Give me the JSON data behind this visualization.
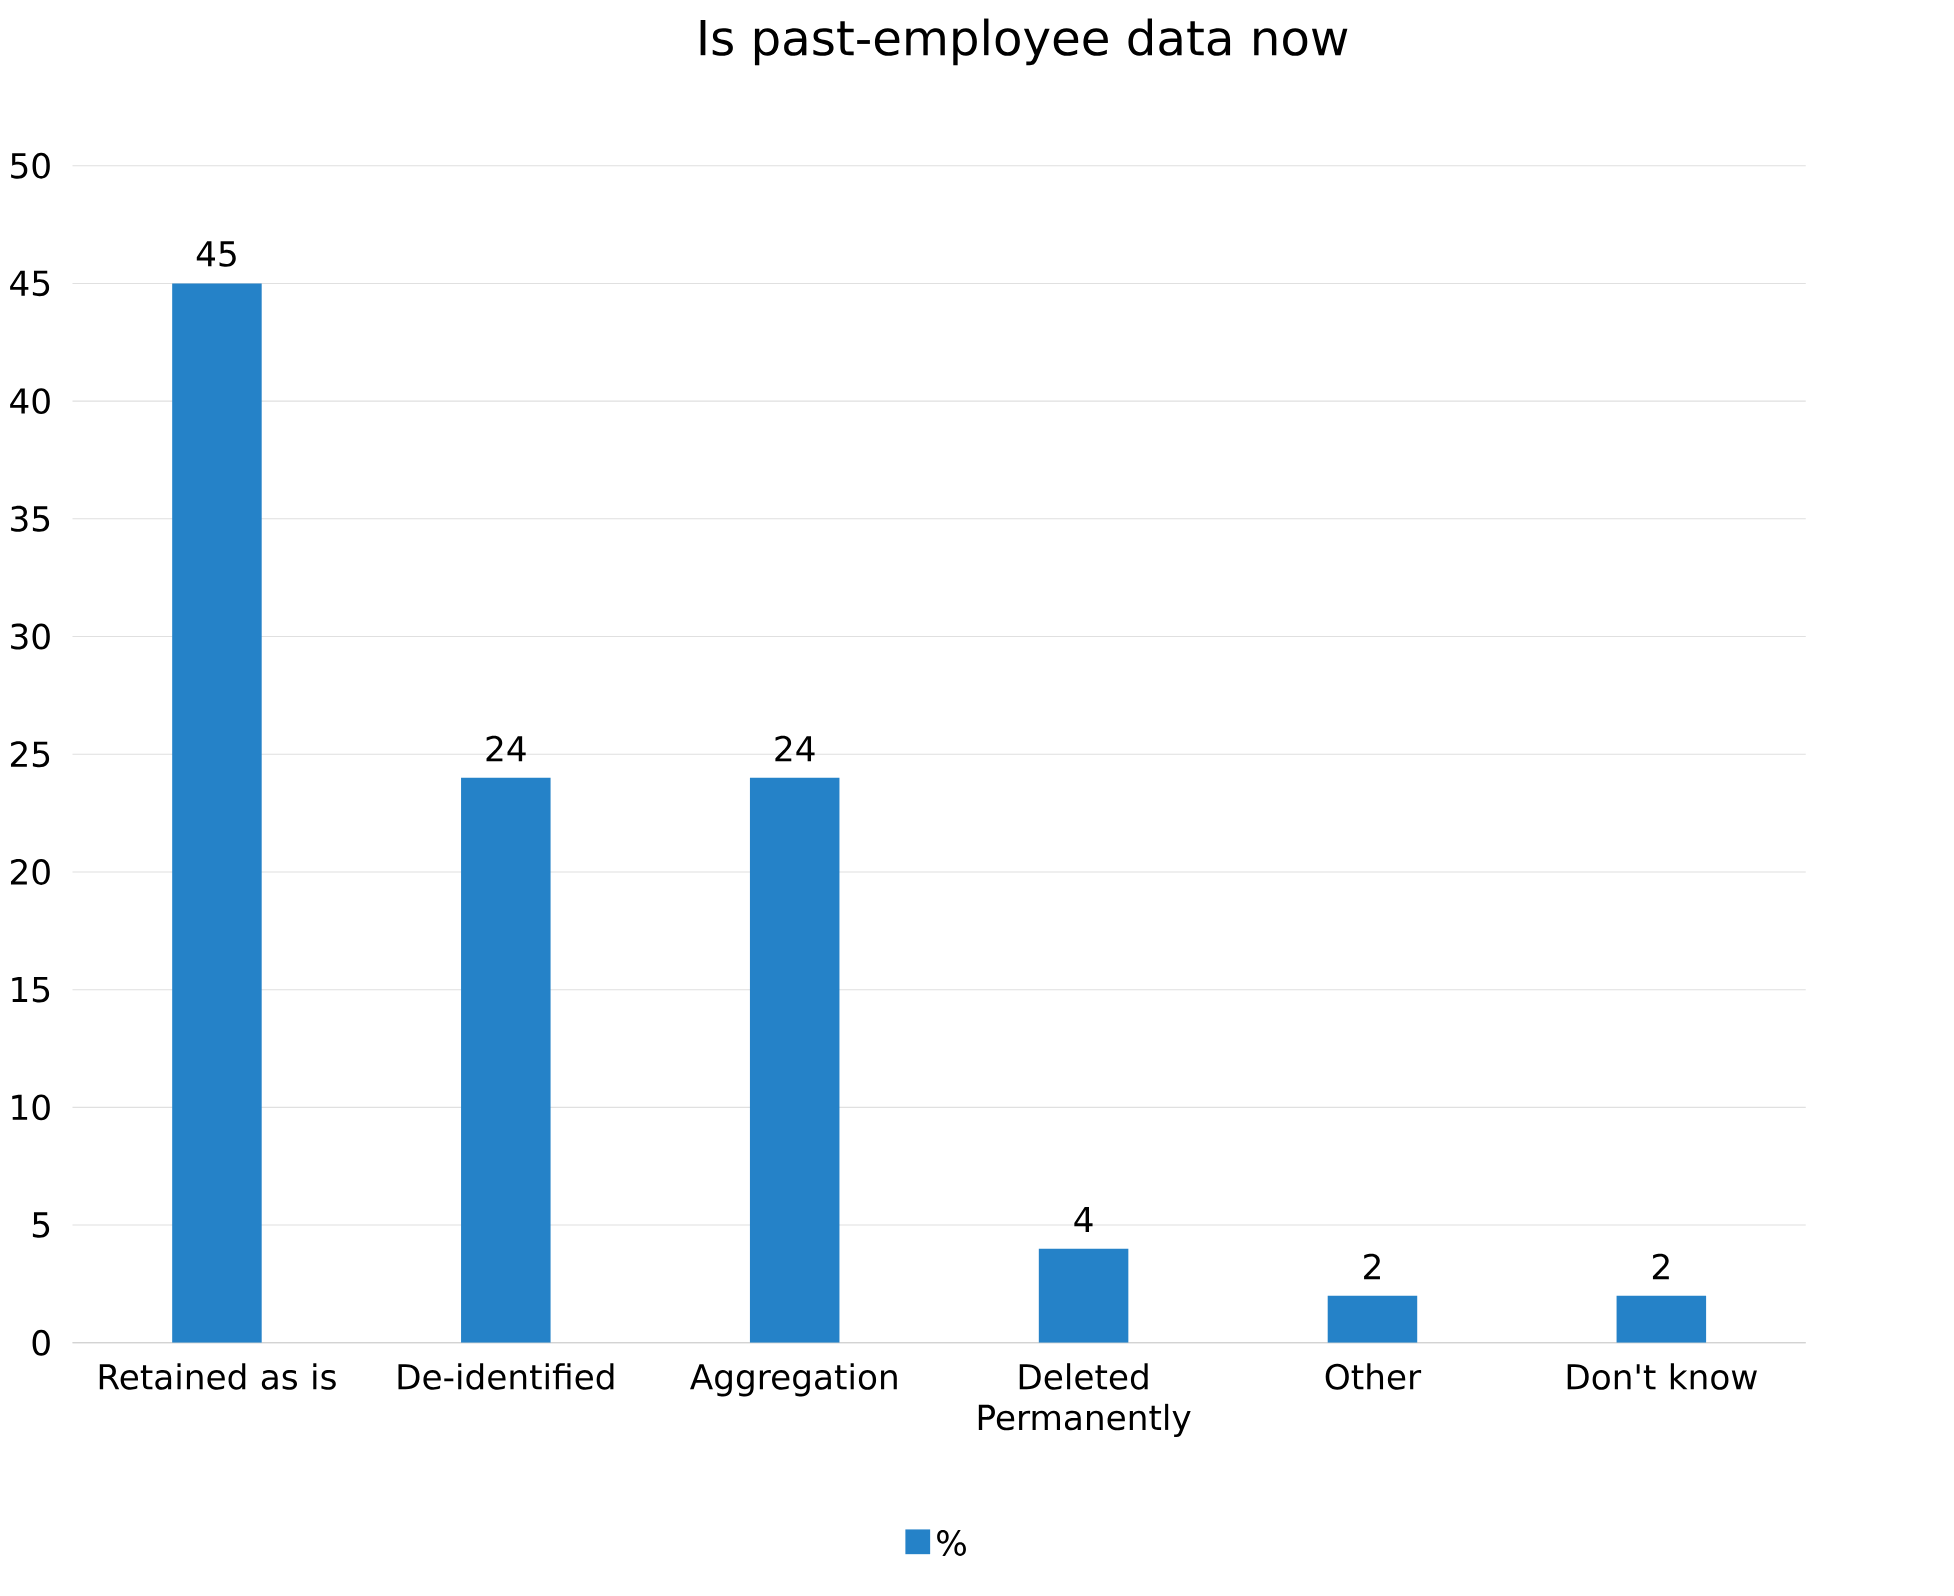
{
  "chart_data": {
    "type": "bar",
    "title": "Is past-employee data now",
    "categories": [
      "Retained as is",
      "De-identified",
      "Aggregation",
      "Deleted Permanently",
      "Other",
      "Don't know"
    ],
    "series": [
      {
        "name": "%",
        "color": "#2582c8",
        "values": [
          45,
          24,
          24,
          4,
          2,
          2
        ]
      }
    ],
    "ylim": [
      0,
      50
    ],
    "yticks": [
      0,
      5,
      10,
      15,
      20,
      25,
      30,
      35,
      40,
      45,
      50
    ],
    "grid": "y",
    "legend": "bottom",
    "data_labels": true
  }
}
